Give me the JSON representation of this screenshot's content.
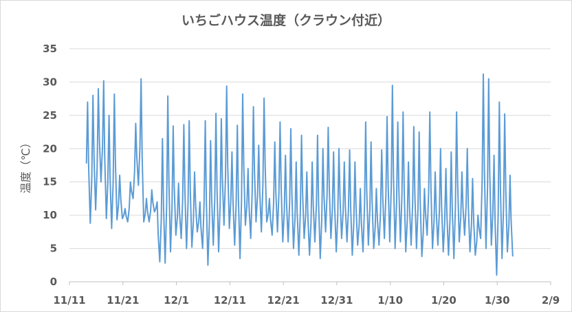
{
  "chart_data": {
    "type": "line",
    "title": "いちごハウス温度（クラウン付近）",
    "xlabel": "",
    "ylabel": "温度（℃）",
    "ylim": [
      0,
      35
    ],
    "y_ticks": [
      0,
      5,
      10,
      15,
      20,
      25,
      30,
      35
    ],
    "x_ticks": [
      "11/11",
      "11/21",
      "12/1",
      "12/11",
      "12/21",
      "12/31",
      "1/10",
      "1/20",
      "1/30",
      "2/9"
    ],
    "x_tick_dates": [
      "2021-11-11",
      "2021-11-21",
      "2021-12-01",
      "2021-12-11",
      "2021-12-21",
      "2021-12-31",
      "2022-01-10",
      "2022-01-20",
      "2022-01-30",
      "2022-02-09"
    ],
    "grid": "horizontal",
    "line_color": "#5b9bd5",
    "series": [
      {
        "name": "",
        "x": [
          "2021-11-14",
          "2021-11-15",
          "2021-11-16",
          "2021-11-17",
          "2021-11-18",
          "2021-11-19",
          "2021-11-20",
          "2021-11-21",
          "2021-11-22",
          "2021-11-23",
          "2021-11-24",
          "2021-11-25",
          "2021-11-26",
          "2021-11-27",
          "2021-11-28",
          "2021-11-29",
          "2021-11-30",
          "2021-12-01",
          "2021-12-02",
          "2021-12-03",
          "2021-12-04",
          "2021-12-05",
          "2021-12-06",
          "2021-12-07",
          "2021-12-08",
          "2021-12-09",
          "2021-12-10",
          "2021-12-11",
          "2021-12-12",
          "2021-12-13",
          "2021-12-14",
          "2021-12-15",
          "2021-12-16",
          "2021-12-17",
          "2021-12-18",
          "2021-12-19",
          "2021-12-20",
          "2021-12-21",
          "2021-12-22",
          "2021-12-23",
          "2021-12-24",
          "2021-12-25",
          "2021-12-26",
          "2021-12-27",
          "2021-12-28",
          "2021-12-29",
          "2021-12-30",
          "2021-12-31",
          "2022-01-01",
          "2022-01-02",
          "2022-01-03",
          "2022-01-04",
          "2022-01-05",
          "2022-01-06",
          "2022-01-07",
          "2022-01-08",
          "2022-01-09",
          "2022-01-10",
          "2022-01-11",
          "2022-01-12",
          "2022-01-13",
          "2022-01-14",
          "2022-01-15",
          "2022-01-16",
          "2022-01-17",
          "2022-01-18",
          "2022-01-19",
          "2022-01-20",
          "2022-01-21",
          "2022-01-22",
          "2022-01-23",
          "2022-01-24",
          "2022-01-25",
          "2022-01-26",
          "2022-01-27",
          "2022-01-28",
          "2022-01-29",
          "2022-01-30",
          "2022-01-31",
          "2022-02-01"
        ],
        "daily_max": [
          27.0,
          28.0,
          29.0,
          30.2,
          25.0,
          28.2,
          16.0,
          11.0,
          15.0,
          23.8,
          30.5,
          12.5,
          13.8,
          12.0,
          21.5,
          27.9,
          23.4,
          14.8,
          23.6,
          24.2,
          16.5,
          12.0,
          24.2,
          21.2,
          25.3,
          24.5,
          29.4,
          19.5,
          23.5,
          28.2,
          17.0,
          26.3,
          20.5,
          27.6,
          12.5,
          21.0,
          24.0,
          19.0,
          23.0,
          18.0,
          22.0,
          16.5,
          18.0,
          22.0,
          20.0,
          23.2,
          19.5,
          20.0,
          18.0,
          19.8,
          18.0,
          14.0,
          24.0,
          21.0,
          14.0,
          19.8,
          24.8,
          29.5,
          24.0,
          25.5,
          18.0,
          23.3,
          22.5,
          14.0,
          25.5,
          16.5,
          20.0,
          17.0,
          19.5,
          25.5,
          16.5,
          20.0,
          15.5,
          10.0,
          31.2,
          30.5,
          19.0,
          27.0,
          25.2,
          16.0
        ],
        "daily_min": [
          8.8,
          10.8,
          15.0,
          9.5,
          8.0,
          9.3,
          9.5,
          9.0,
          12.5,
          14.5,
          9.0,
          9.0,
          10.5,
          3.0,
          2.8,
          4.5,
          7.0,
          6.5,
          5.0,
          5.2,
          7.5,
          5.0,
          2.5,
          5.5,
          4.5,
          8.5,
          8.0,
          5.5,
          3.5,
          8.5,
          6.5,
          9.0,
          7.5,
          9.0,
          7.0,
          7.5,
          6.0,
          6.0,
          5.0,
          4.0,
          6.5,
          4.0,
          6.0,
          3.5,
          7.5,
          6.5,
          4.5,
          6.5,
          6.0,
          4.0,
          5.5,
          4.5,
          5.5,
          5.0,
          5.5,
          6.5,
          6.0,
          5.0,
          6.0,
          4.5,
          5.5,
          5.0,
          3.8,
          7.0,
          5.0,
          5.5,
          4.5,
          4.0,
          3.5,
          6.0,
          7.0,
          4.5,
          4.0,
          6.5,
          5.0,
          5.5,
          1.0,
          3.5,
          4.5,
          3.8
        ]
      }
    ]
  }
}
